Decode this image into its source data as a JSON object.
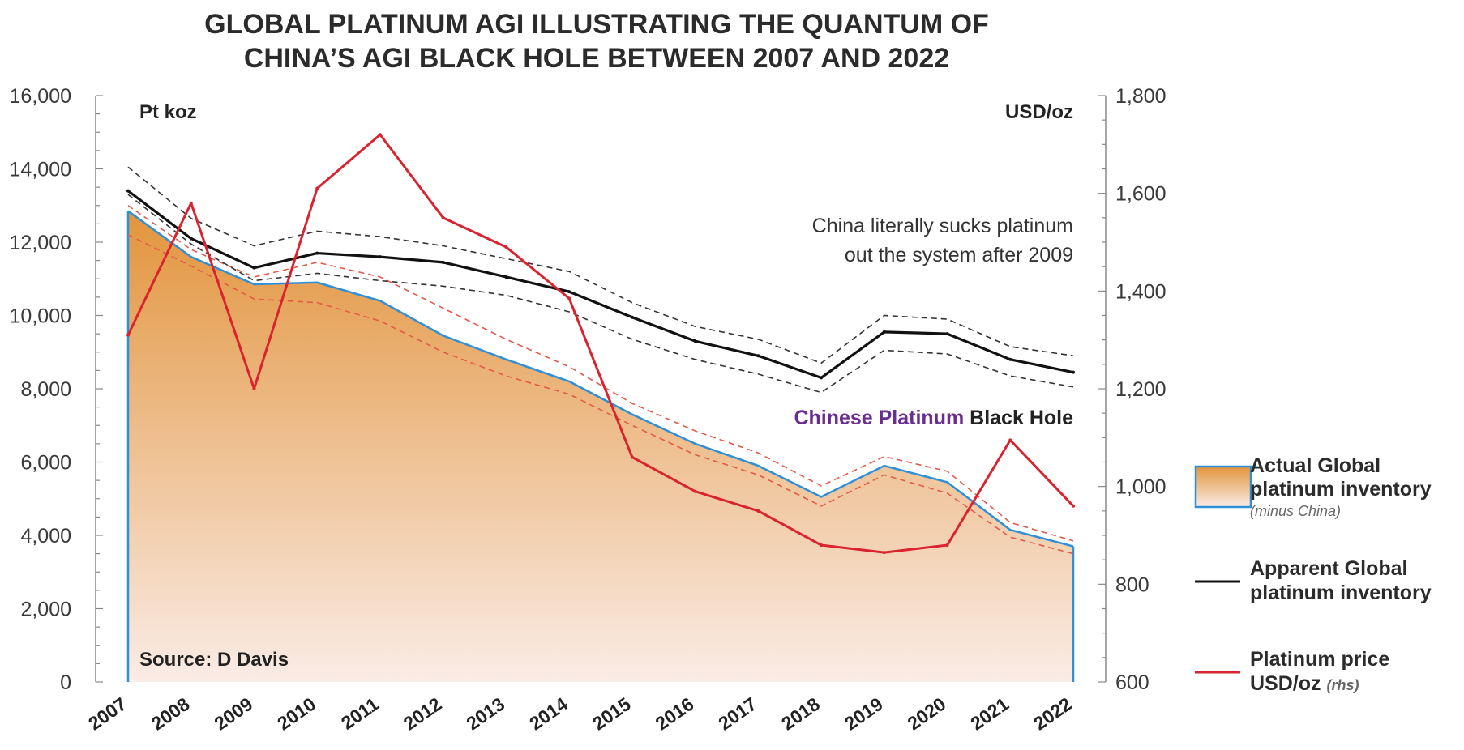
{
  "chart_data": {
    "type": "area",
    "title_lines": [
      "GLOBAL PLATINUM AGI ILLUSTRATING THE QUANTUM OF",
      "CHINA’S AGI BLACK HOLE BETWEEN 2007 AND 2022"
    ],
    "categories": [
      "2007",
      "2008",
      "2009",
      "2010",
      "2011",
      "2012",
      "2013",
      "2014",
      "2015",
      "2016",
      "2017",
      "2018",
      "2019",
      "2020",
      "2021",
      "2022"
    ],
    "left_axis": {
      "label": "Pt koz",
      "ylim": [
        0,
        16000
      ],
      "ticks": [
        0,
        2000,
        4000,
        6000,
        8000,
        10000,
        12000,
        14000,
        16000
      ],
      "tick_labels": [
        "0",
        "2,000",
        "4,000",
        "6,000",
        "8,000",
        "10,000",
        "12,000",
        "14,000",
        "16,000"
      ]
    },
    "right_axis": {
      "label": "USD/oz",
      "ylim": [
        600,
        1800
      ],
      "ticks": [
        600,
        800,
        1000,
        1200,
        1400,
        1600,
        1800
      ],
      "tick_labels": [
        "600",
        "800",
        "1,000",
        "1,200",
        "1,400",
        "1,600",
        "1,800"
      ]
    },
    "series": [
      {
        "name": "Actual Global platinum inventory",
        "sub": "(minus China)",
        "type": "area",
        "axis": "left",
        "color": "#e3963f",
        "edge_color": "#2f8fd8",
        "values": [
          12850,
          11600,
          10850,
          10900,
          10400,
          9450,
          8800,
          8200,
          7300,
          6500,
          5900,
          5050,
          5900,
          5450,
          4150,
          3700
        ],
        "band_upper": [
          13000,
          11800,
          11050,
          11450,
          11050,
          10200,
          9350,
          8600,
          7600,
          6850,
          6250,
          5350,
          6150,
          5750,
          4350,
          3850
        ],
        "band_lower": [
          12200,
          11350,
          10450,
          10350,
          9850,
          9000,
          8350,
          7850,
          7000,
          6200,
          5650,
          4800,
          5650,
          5150,
          3950,
          3500
        ]
      },
      {
        "name": "Apparent Global platinum inventory",
        "type": "line",
        "axis": "left",
        "color": "#111111",
        "values": [
          13400,
          12100,
          11300,
          11700,
          11600,
          11450,
          11050,
          10650,
          9950,
          9300,
          8900,
          8300,
          9550,
          9500,
          8800,
          8450
        ],
        "band_upper": [
          14050,
          12650,
          11900,
          12300,
          12150,
          11900,
          11550,
          11200,
          10350,
          9700,
          9350,
          8700,
          10000,
          9900,
          9150,
          8900
        ],
        "band_lower": [
          13300,
          11950,
          10950,
          11150,
          10950,
          10800,
          10550,
          10100,
          9350,
          8800,
          8400,
          7900,
          9050,
          8950,
          8350,
          8050
        ]
      },
      {
        "name": "Platinum price",
        "name_line2": "USD/oz",
        "sub": "(rhs)",
        "type": "line",
        "axis": "right",
        "color": "#d9232e",
        "values": [
          1310,
          1580,
          1200,
          1610,
          1720,
          1550,
          1490,
          1385,
          1060,
          990,
          950,
          880,
          865,
          880,
          1095,
          960
        ]
      }
    ],
    "annotations": {
      "china_line1": "China literally sucks platinum",
      "china_line2": "out the system after 2009",
      "hole_colored": "Chinese Platinum",
      "hole_plain": "Black Hole",
      "source": "Source: D Davis"
    },
    "colors": {
      "area_top": "#e2943c",
      "area_bottom": "#faece6",
      "hole_accent": "#6a2d91",
      "band_red": "#e45a4a",
      "band_black": "#333333",
      "grid_axis": "#888888"
    }
  }
}
